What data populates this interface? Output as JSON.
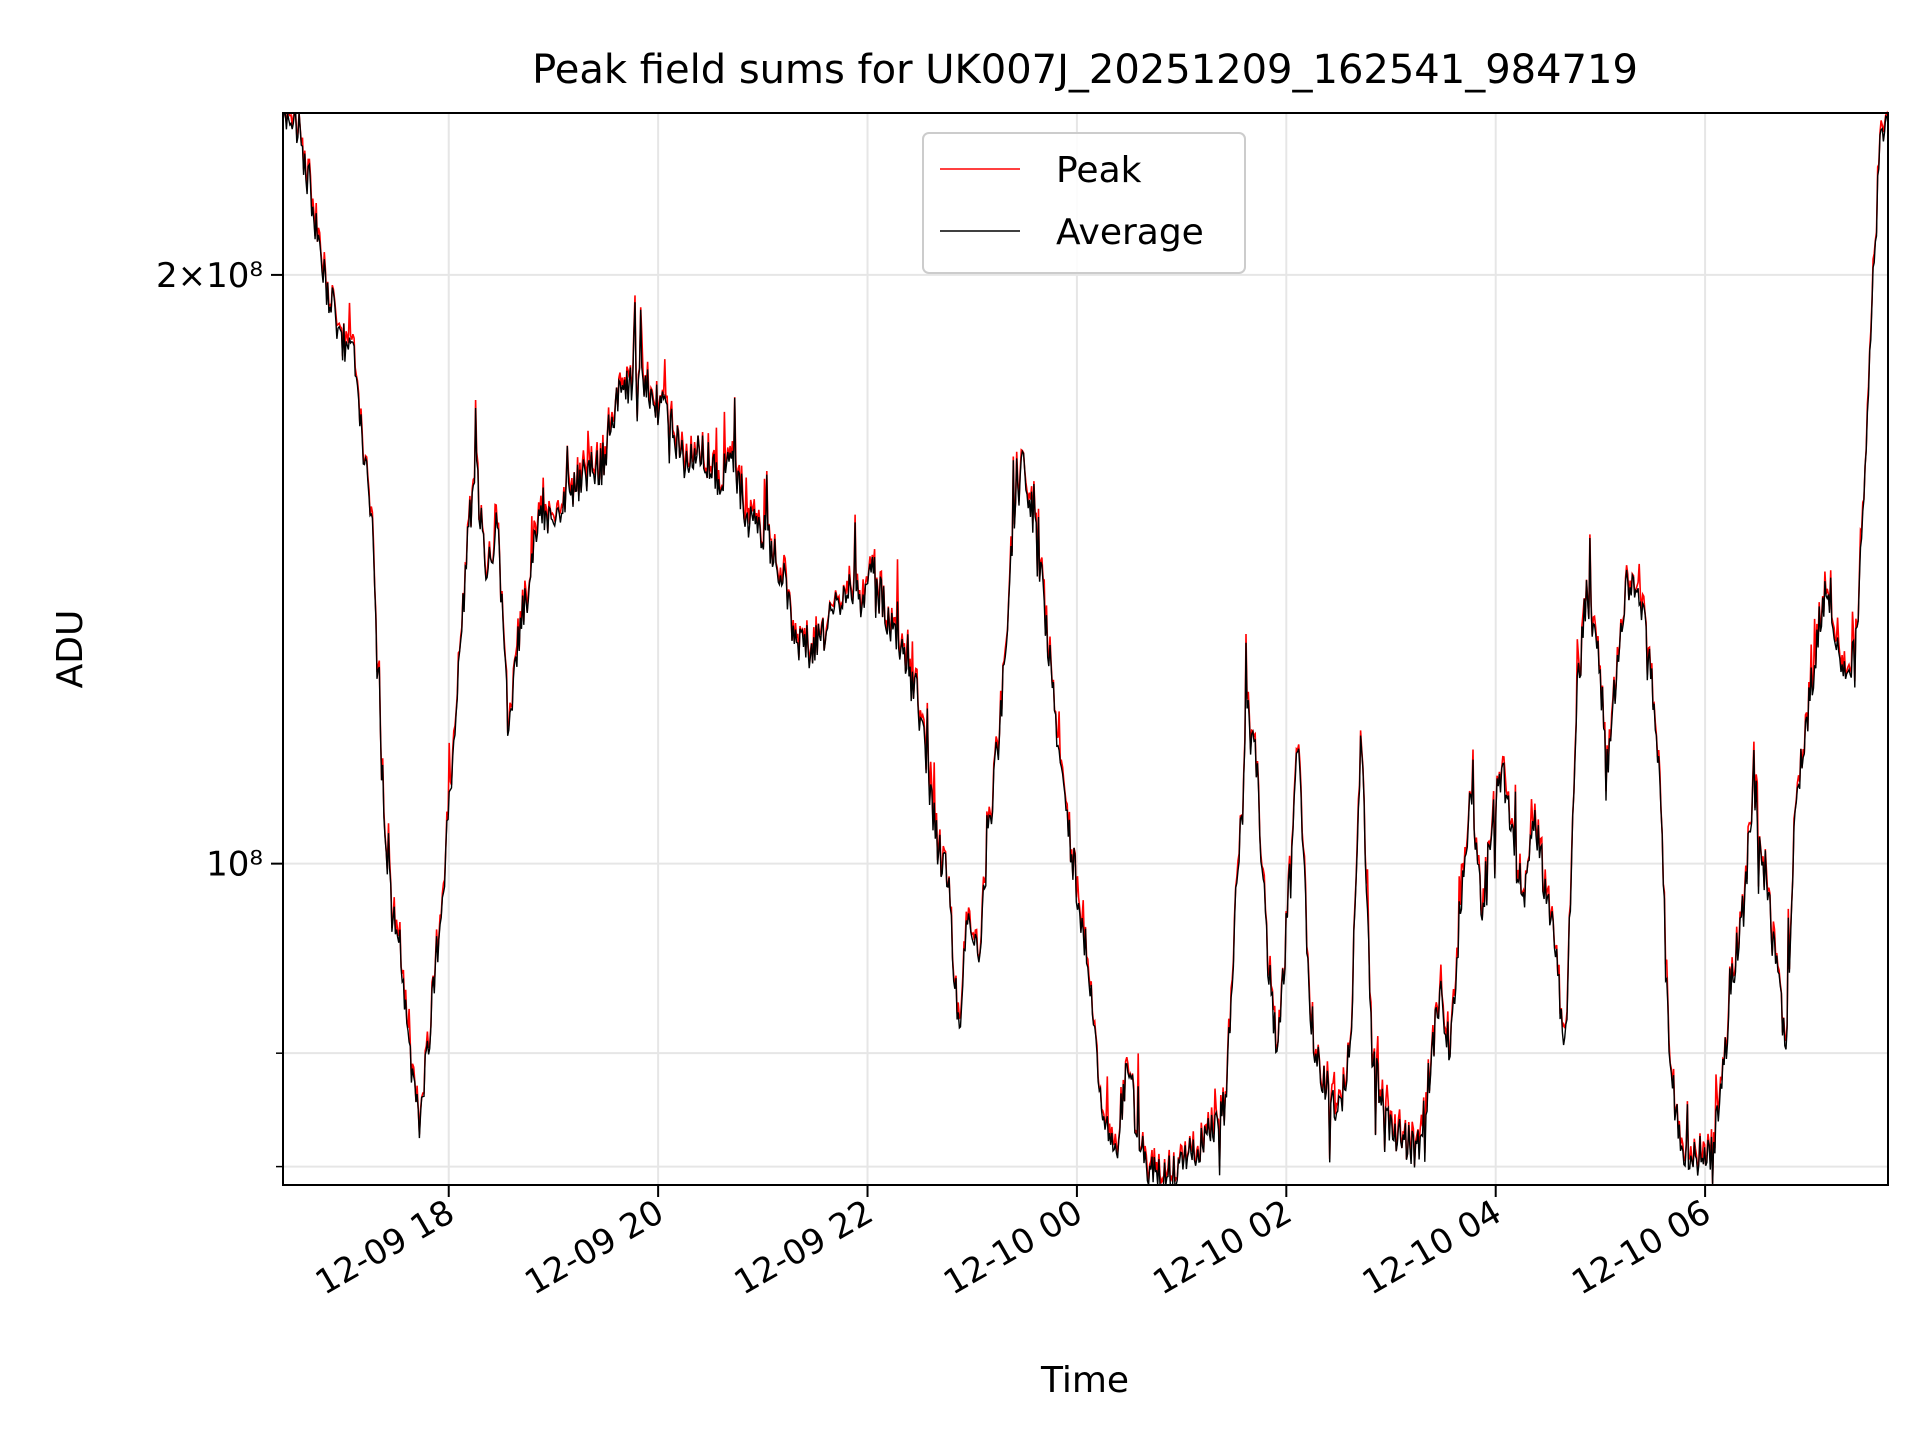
{
  "chart_data": {
    "type": "line",
    "title": "Peak field sums for UK007J_20251209_162541_984719",
    "xlabel": "Time",
    "ylabel": "ADU",
    "yscale": "log",
    "grid": true,
    "legend_position": "upper center",
    "x_unit": "hours since 12-09 16:25",
    "xlim": [
      0,
      15.33
    ],
    "ylim": [
      68500000,
      242000000
    ],
    "x_ticks": [
      {
        "label": "12-09 18",
        "value": 1.583
      },
      {
        "label": "12-09 20",
        "value": 3.583
      },
      {
        "label": "12-09 22",
        "value": 5.583
      },
      {
        "label": "12-10 00",
        "value": 7.583
      },
      {
        "label": "12-10 02",
        "value": 9.583
      },
      {
        "label": "12-10 04",
        "value": 11.583
      },
      {
        "label": "12-10 06",
        "value": 13.583
      }
    ],
    "y_major_ticks": [
      {
        "label": "2×10⁸",
        "value": 200000000
      },
      {
        "label": "10⁸",
        "value": 100000000
      }
    ],
    "y_minor_ticks": [
      70000000,
      80000000
    ],
    "series": [
      {
        "name": "Peak",
        "color": "#ff0000"
      },
      {
        "name": "Average",
        "color": "#000000"
      }
    ],
    "average_points": [
      [
        0.0,
        242000000
      ],
      [
        0.15,
        238000000
      ],
      [
        0.3,
        215000000
      ],
      [
        0.4,
        198000000
      ],
      [
        0.5,
        190000000
      ],
      [
        0.6,
        183000000
      ],
      [
        0.7,
        180000000
      ],
      [
        0.78,
        160000000
      ],
      [
        0.85,
        150000000
      ],
      [
        0.92,
        118000000
      ],
      [
        1.0,
        100000000
      ],
      [
        1.1,
        92000000
      ],
      [
        1.2,
        80000000
      ],
      [
        1.3,
        74000000
      ],
      [
        1.38,
        80000000
      ],
      [
        1.45,
        88000000
      ],
      [
        1.55,
        100000000
      ],
      [
        1.62,
        112000000
      ],
      [
        1.7,
        130000000
      ],
      [
        1.78,
        150000000
      ],
      [
        1.85,
        158000000
      ],
      [
        1.95,
        140000000
      ],
      [
        2.05,
        150000000
      ],
      [
        2.15,
        118000000
      ],
      [
        2.25,
        130000000
      ],
      [
        2.35,
        138000000
      ],
      [
        2.45,
        152000000
      ],
      [
        2.6,
        150000000
      ],
      [
        2.75,
        155000000
      ],
      [
        2.9,
        158000000
      ],
      [
        3.05,
        160000000
      ],
      [
        3.15,
        170000000
      ],
      [
        3.25,
        175000000
      ],
      [
        3.4,
        178000000
      ],
      [
        3.55,
        172000000
      ],
      [
        3.7,
        168000000
      ],
      [
        3.85,
        160000000
      ],
      [
        4.0,
        162000000
      ],
      [
        4.15,
        158000000
      ],
      [
        4.3,
        160000000
      ],
      [
        4.45,
        150000000
      ],
      [
        4.6,
        148000000
      ],
      [
        4.75,
        142000000
      ],
      [
        4.9,
        130000000
      ],
      [
        5.05,
        128000000
      ],
      [
        5.2,
        132000000
      ],
      [
        5.35,
        138000000
      ],
      [
        5.5,
        136000000
      ],
      [
        5.65,
        140000000
      ],
      [
        5.8,
        132000000
      ],
      [
        5.95,
        126000000
      ],
      [
        6.05,
        122000000
      ],
      [
        6.15,
        112000000
      ],
      [
        6.25,
        102000000
      ],
      [
        6.35,
        98000000
      ],
      [
        6.45,
        82000000
      ],
      [
        6.55,
        95000000
      ],
      [
        6.65,
        90000000
      ],
      [
        6.75,
        105000000
      ],
      [
        6.85,
        118000000
      ],
      [
        6.95,
        142000000
      ],
      [
        7.05,
        160000000
      ],
      [
        7.15,
        152000000
      ],
      [
        7.25,
        140000000
      ],
      [
        7.35,
        122000000
      ],
      [
        7.45,
        110000000
      ],
      [
        7.55,
        100000000
      ],
      [
        7.65,
        92000000
      ],
      [
        7.75,
        82000000
      ],
      [
        7.85,
        74000000
      ],
      [
        7.95,
        71000000
      ],
      [
        8.05,
        78000000
      ],
      [
        8.15,
        74000000
      ],
      [
        8.25,
        70000000
      ],
      [
        8.4,
        69000000
      ],
      [
        8.6,
        70000000
      ],
      [
        8.8,
        72000000
      ],
      [
        9.0,
        75000000
      ],
      [
        9.1,
        95000000
      ],
      [
        9.2,
        120000000
      ],
      [
        9.3,
        112000000
      ],
      [
        9.4,
        90000000
      ],
      [
        9.5,
        80000000
      ],
      [
        9.6,
        95000000
      ],
      [
        9.7,
        118000000
      ],
      [
        9.8,
        85000000
      ],
      [
        9.9,
        78000000
      ],
      [
        10.0,
        76000000
      ],
      [
        10.1,
        75000000
      ],
      [
        10.2,
        82000000
      ],
      [
        10.3,
        118000000
      ],
      [
        10.4,
        80000000
      ],
      [
        10.55,
        74000000
      ],
      [
        10.7,
        72000000
      ],
      [
        10.85,
        71500000
      ],
      [
        10.95,
        78000000
      ],
      [
        11.05,
        86000000
      ],
      [
        11.15,
        80000000
      ],
      [
        11.25,
        96000000
      ],
      [
        11.35,
        110000000
      ],
      [
        11.45,
        95000000
      ],
      [
        11.55,
        105000000
      ],
      [
        11.65,
        112000000
      ],
      [
        11.75,
        102000000
      ],
      [
        11.85,
        96000000
      ],
      [
        11.95,
        105000000
      ],
      [
        12.05,
        98000000
      ],
      [
        12.15,
        90000000
      ],
      [
        12.25,
        80000000
      ],
      [
        12.35,
        120000000
      ],
      [
        12.45,
        138000000
      ],
      [
        12.55,
        130000000
      ],
      [
        12.65,
        112000000
      ],
      [
        12.75,
        128000000
      ],
      [
        12.85,
        140000000
      ],
      [
        12.95,
        135000000
      ],
      [
        13.05,
        130000000
      ],
      [
        13.15,
        110000000
      ],
      [
        13.25,
        78000000
      ],
      [
        13.35,
        72000000
      ],
      [
        13.5,
        71000000
      ],
      [
        13.65,
        71000000
      ],
      [
        13.75,
        78000000
      ],
      [
        13.85,
        88000000
      ],
      [
        13.95,
        95000000
      ],
      [
        14.05,
        110000000
      ],
      [
        14.15,
        100000000
      ],
      [
        14.25,
        90000000
      ],
      [
        14.35,
        80000000
      ],
      [
        14.45,
        108000000
      ],
      [
        14.55,
        118000000
      ],
      [
        14.65,
        130000000
      ],
      [
        14.75,
        140000000
      ],
      [
        14.85,
        130000000
      ],
      [
        14.95,
        122000000
      ],
      [
        15.05,
        135000000
      ],
      [
        15.15,
        180000000
      ],
      [
        15.25,
        230000000
      ],
      [
        15.33,
        242000000
      ]
    ]
  }
}
